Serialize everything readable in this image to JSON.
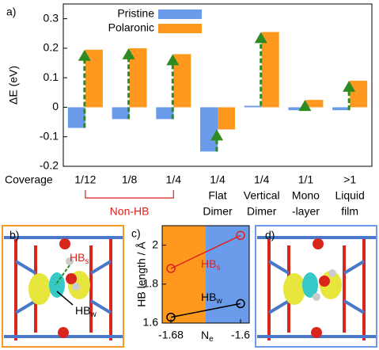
{
  "chart_data": [
    {
      "type": "bar",
      "panel_label": "a)",
      "ylabel": "ΔE (eV)",
      "xlabel": "Coverage",
      "categories": [
        [
          "1/12"
        ],
        [
          "1/8"
        ],
        [
          "1/4"
        ],
        [
          "1/4",
          "Flat",
          "Dimer"
        ],
        [
          "1/4",
          "Vertical",
          "Dimer"
        ],
        [
          "1/1",
          "Mono",
          "-layer"
        ],
        [
          ">1",
          "Liquid",
          "film"
        ]
      ],
      "series": [
        {
          "name": "Pristine",
          "color": "#6b9ceb",
          "values": [
            -0.07,
            -0.04,
            -0.04,
            -0.15,
            0.005,
            -0.01,
            -0.01
          ]
        },
        {
          "name": "Polaronic",
          "color": "#ff981e",
          "values": [
            0.195,
            0.2,
            0.18,
            -0.075,
            0.255,
            0.025,
            0.09
          ]
        }
      ],
      "arrow_color": "#2e8b22",
      "annotation": "Non-HB",
      "ylim": [
        -0.2,
        0.35
      ],
      "yticks": [
        -0.2,
        -0.1,
        0,
        0.1,
        0.2,
        0.3
      ]
    },
    {
      "type": "line",
      "panel_label": "c)",
      "ylabel": "HB length / Å",
      "xlabel": {
        "main": "N",
        "sub": "e"
      },
      "x": [
        -1.68,
        -1.6
      ],
      "series": [
        {
          "name": "HB",
          "sub": "s",
          "color": "#e0201b",
          "values": [
            1.88,
            2.05
          ]
        },
        {
          "name": "HB",
          "sub": "w",
          "color": "#000000",
          "values": [
            1.63,
            1.7
          ]
        }
      ],
      "background": [
        "#ff981e",
        "#6b9ceb"
      ],
      "xlim": [
        -1.69,
        -1.59
      ],
      "xticks": [
        -1.68,
        -1.6
      ],
      "ylim": [
        1.6,
        2.1
      ],
      "yticks": [
        1.6,
        1.8,
        2
      ]
    }
  ],
  "panels": {
    "b": {
      "label": "b)",
      "hbs": {
        "main": "HB",
        "sub": "s"
      },
      "hbw": {
        "main": "HB",
        "sub": "w"
      }
    },
    "d": {
      "label": "d)"
    }
  }
}
